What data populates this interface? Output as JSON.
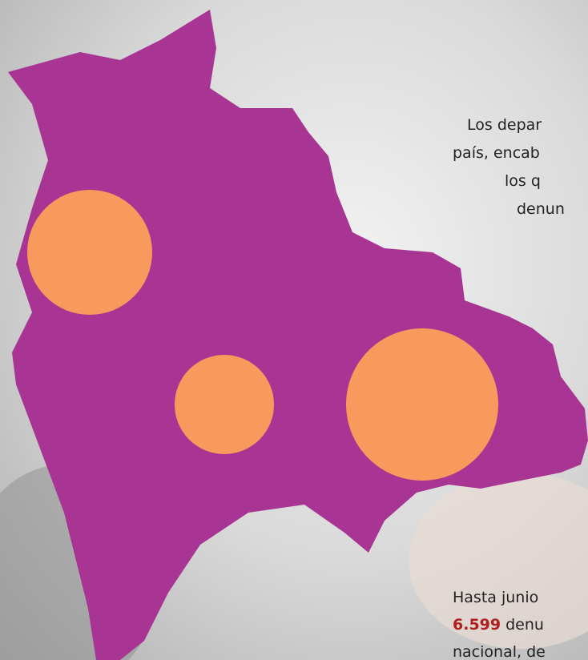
{
  "intro_text": {
    "lines": [
      "Los depar",
      "país, encab",
      "los q",
      "denun"
    ]
  },
  "summary_text": {
    "line1": "Hasta junio",
    "number": "6.599",
    "line2_rest": "denu",
    "line3": "nacional, de"
  }
}
